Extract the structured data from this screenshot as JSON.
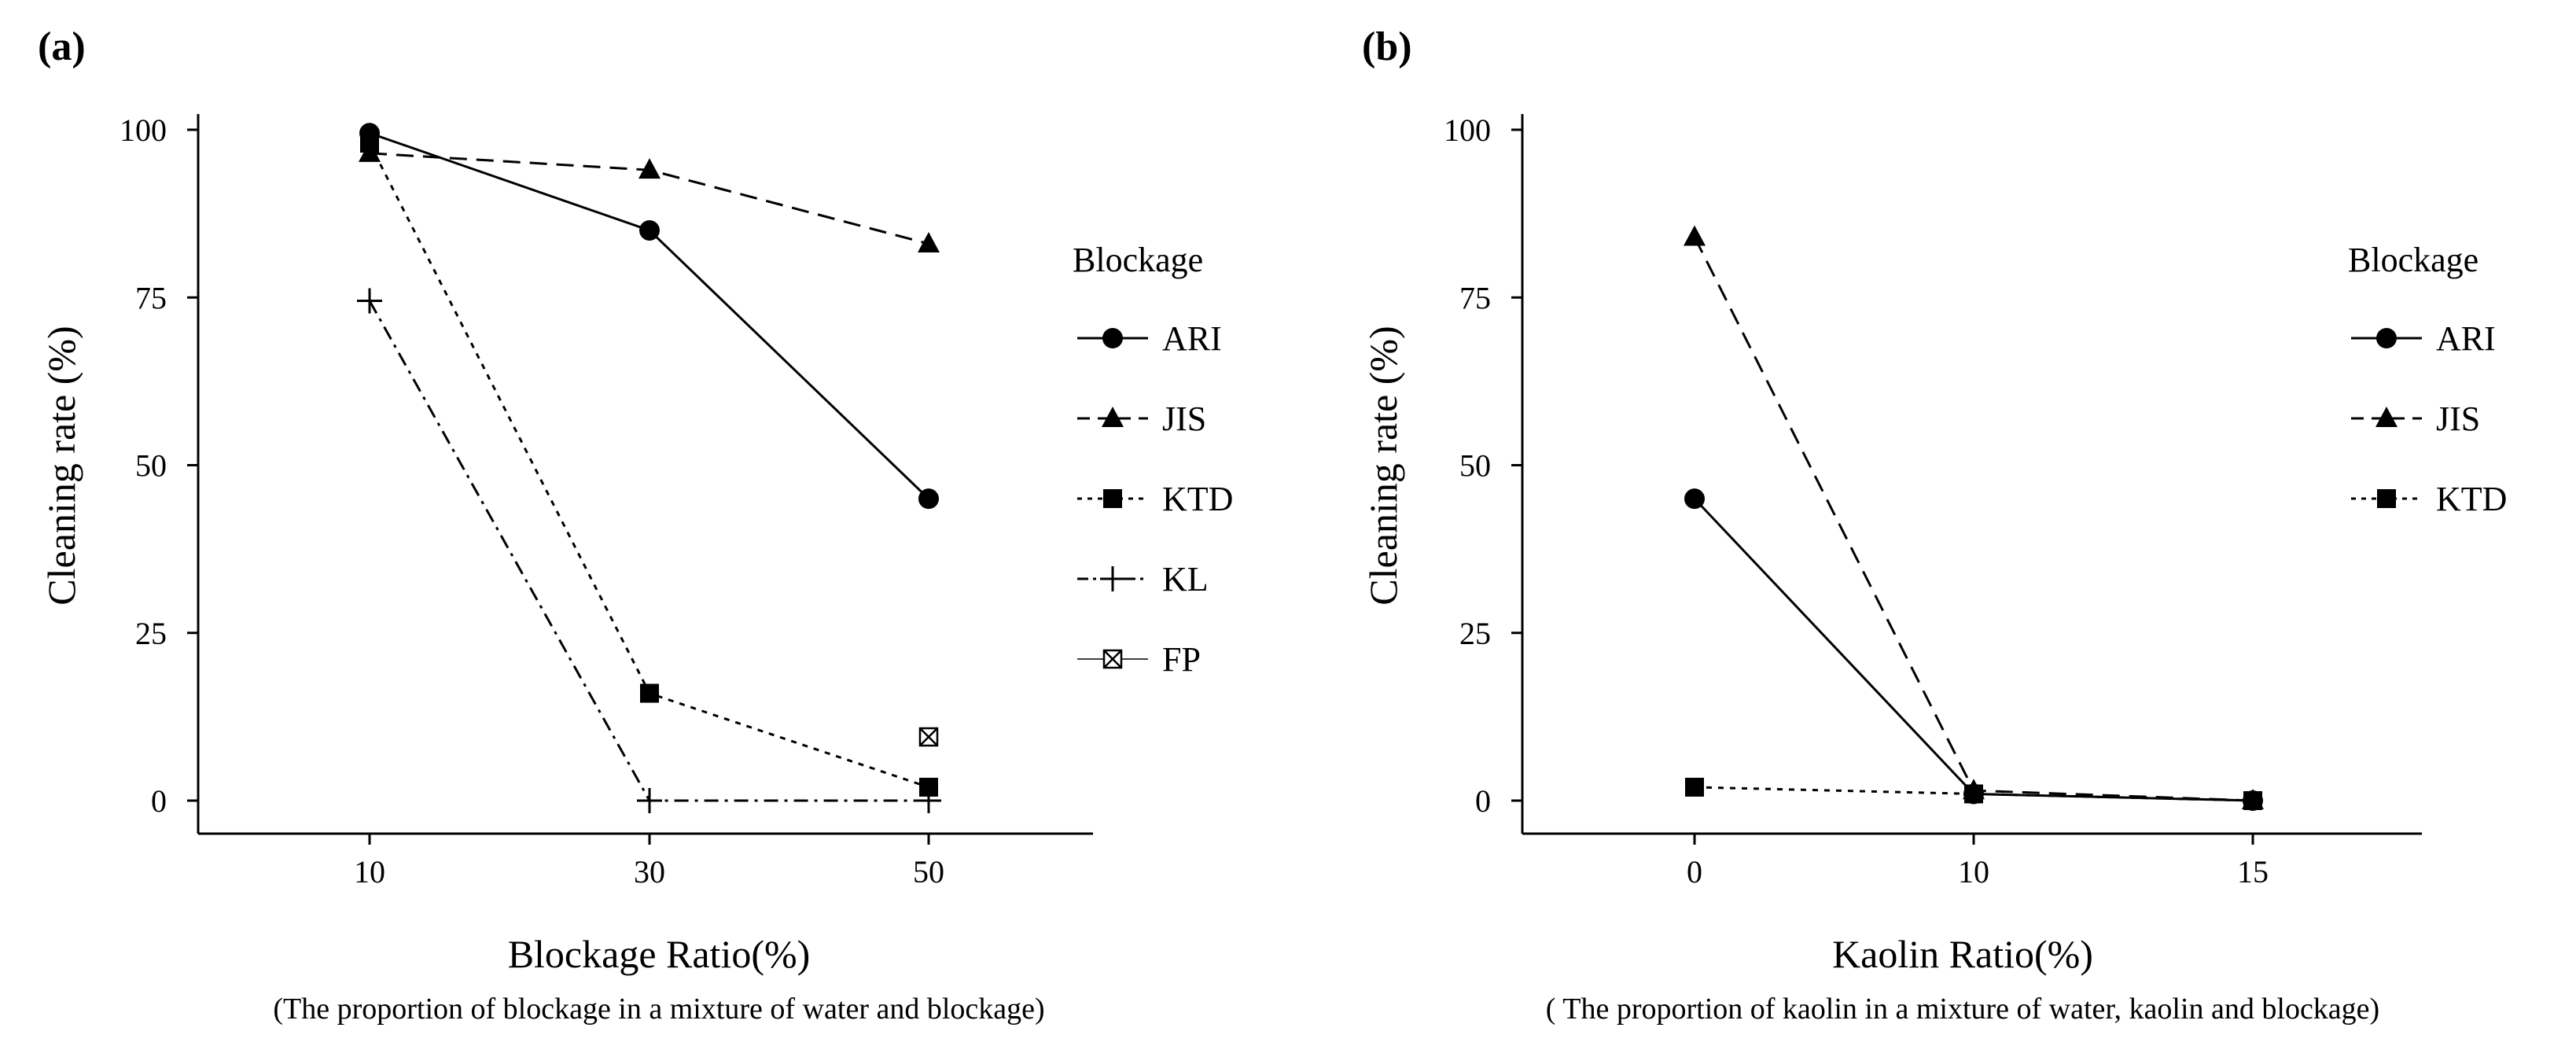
{
  "chart_data": [
    {
      "panel_label": "(a)",
      "type": "line",
      "x": [
        10,
        30,
        50
      ],
      "x_ticks": [
        "10",
        "30",
        "50"
      ],
      "y_ticks": [
        "0",
        "25",
        "50",
        "75",
        "100"
      ],
      "xlabel": "Blockage Ratio(%)",
      "xlabel_sub": "(The proportion of blockage in a mixture of water and blockage)",
      "ylabel": "Cleaning rate (%)",
      "ylim": [
        0,
        100
      ],
      "legend_title": "Blockage",
      "legend_position": "right",
      "grid": false,
      "series": [
        {
          "name": "ARI",
          "marker": "circle",
          "dash": "solid",
          "x": [
            10,
            30,
            50
          ],
          "values": [
            99.5,
            85,
            45
          ]
        },
        {
          "name": "JIS",
          "marker": "triangle",
          "dash": "dashed",
          "x": [
            10,
            30,
            50
          ],
          "values": [
            96.5,
            94,
            83
          ]
        },
        {
          "name": "KTD",
          "marker": "square",
          "dash": "dotted",
          "x": [
            10,
            30,
            50
          ],
          "values": [
            98,
            16,
            2
          ]
        },
        {
          "name": "KL",
          "marker": "plus",
          "dash": "dashdot",
          "x": [
            10,
            30,
            50
          ],
          "values": [
            74.5,
            0,
            0
          ]
        },
        {
          "name": "FP",
          "marker": "boxcross",
          "dash": "solid-thin",
          "x": [
            50
          ],
          "values": [
            9.5
          ]
        }
      ]
    },
    {
      "panel_label": "(b)",
      "type": "line",
      "x": [
        0,
        10,
        15
      ],
      "x_ticks": [
        "0",
        "10",
        "15"
      ],
      "y_ticks": [
        "0",
        "25",
        "50",
        "75",
        "100"
      ],
      "xlabel": "Kaolin Ratio(%)",
      "xlabel_sub": "( The proportion of kaolin in a mixture of water, kaolin and blockage)",
      "ylabel": "Cleaning rate (%)",
      "ylim": [
        0,
        100
      ],
      "legend_title": "Blockage",
      "legend_position": "right",
      "grid": false,
      "series": [
        {
          "name": "ARI",
          "marker": "circle",
          "dash": "solid",
          "x": [
            0,
            10,
            15
          ],
          "values": [
            45,
            1,
            0
          ]
        },
        {
          "name": "JIS",
          "marker": "triangle",
          "dash": "dashed",
          "x": [
            0,
            10,
            15
          ],
          "values": [
            84,
            1.5,
            0
          ]
        },
        {
          "name": "KTD",
          "marker": "square",
          "dash": "dotted",
          "x": [
            0,
            10,
            15
          ],
          "values": [
            2,
            1,
            0
          ]
        }
      ]
    }
  ]
}
